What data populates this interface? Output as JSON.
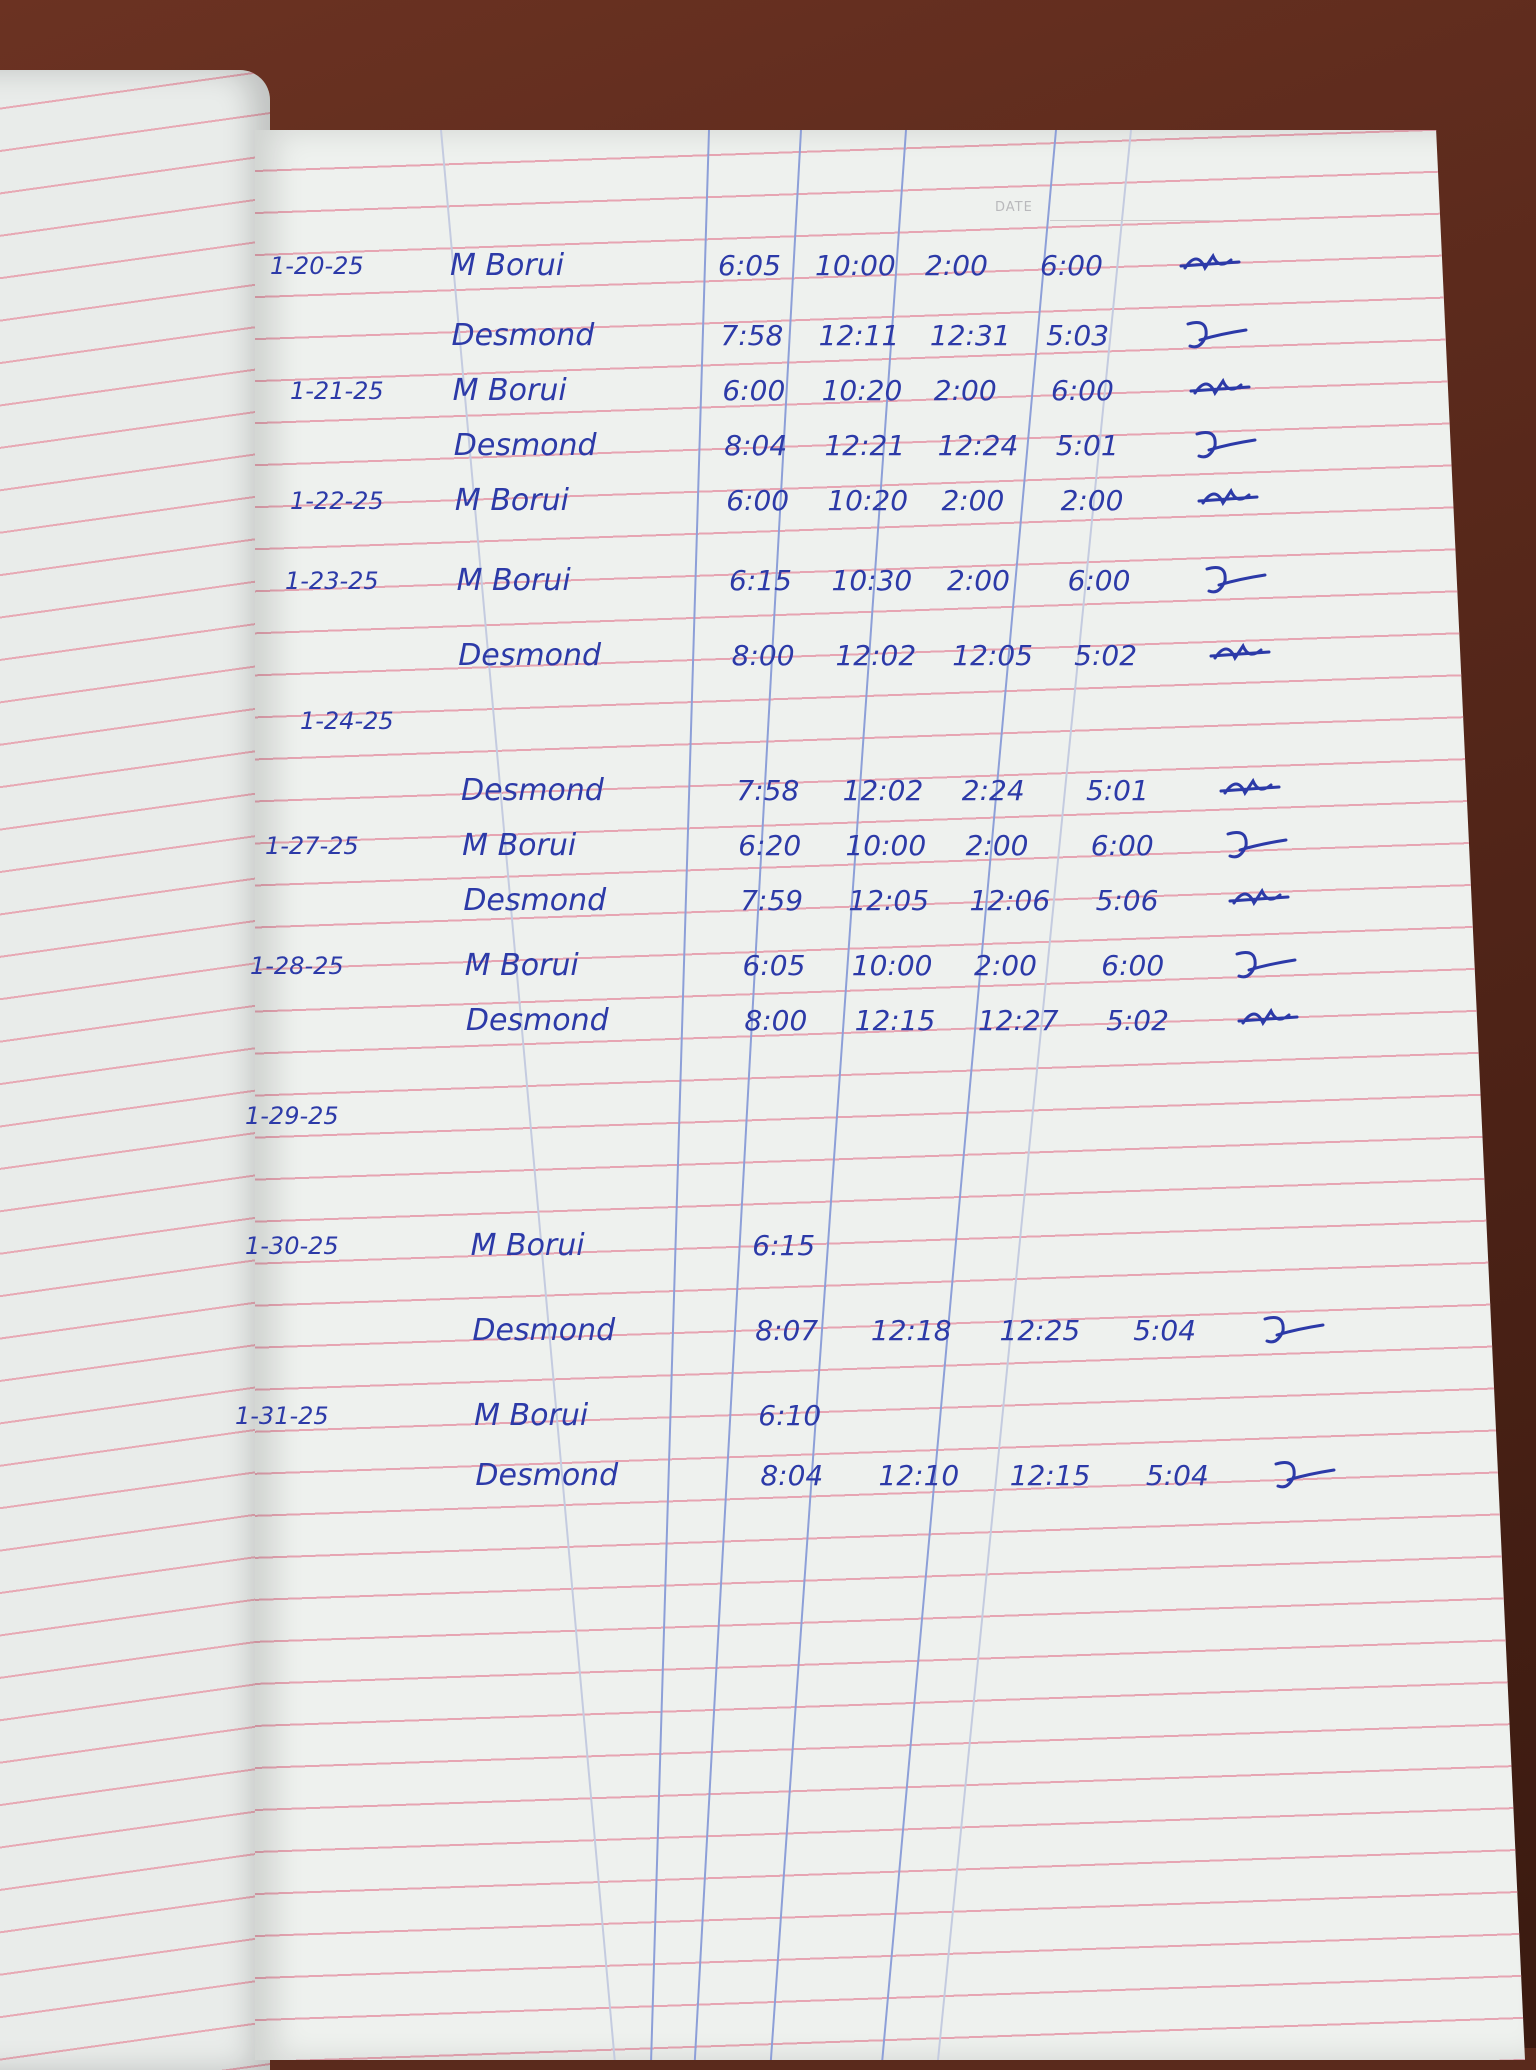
{
  "page_header": {
    "date_label": "DATE"
  },
  "ink_color": "#2c3aa8",
  "rows": [
    {
      "date": "1-20-25",
      "name": "M Borui",
      "times": [
        "6:05",
        "10:00",
        "2:00",
        "6:00"
      ],
      "signed": true
    },
    {
      "date": "",
      "name": "Desmond",
      "times": [
        "7:58",
        "12:11",
        "12:31",
        "5:03"
      ],
      "signed": true
    },
    {
      "date": "1-21-25",
      "name": "M Borui",
      "times": [
        "6:00",
        "10:20",
        "2:00",
        "6:00"
      ],
      "signed": true
    },
    {
      "date": "",
      "name": "Desmond",
      "times": [
        "8:04",
        "12:21",
        "12:24",
        "5:01"
      ],
      "signed": true
    },
    {
      "date": "1-22-25",
      "name": "M Borui",
      "times": [
        "6:00",
        "10:20",
        "2:00",
        "2:00"
      ],
      "signed": true
    },
    {
      "date": "1-23-25",
      "name": "M Borui",
      "times": [
        "6:15",
        "10:30",
        "2:00",
        "6:00"
      ],
      "signed": true
    },
    {
      "date": "",
      "name": "Desmond",
      "times": [
        "8:00",
        "12:02",
        "12:05",
        "5:02"
      ],
      "signed": true
    },
    {
      "date": "1-24-25",
      "name": "",
      "times": [],
      "signed": false
    },
    {
      "date": "",
      "name": "Desmond",
      "times": [
        "7:58",
        "12:02",
        "2:24",
        "5:01"
      ],
      "signed": true
    },
    {
      "date": "1-27-25",
      "name": "M Borui",
      "times": [
        "6:20",
        "10:00",
        "2:00",
        "6:00"
      ],
      "signed": true
    },
    {
      "date": "",
      "name": "Desmond",
      "times": [
        "7:59",
        "12:05",
        "12:06",
        "5:06"
      ],
      "signed": true
    },
    {
      "date": "1-28-25",
      "name": "M Borui",
      "times": [
        "6:05",
        "10:00",
        "2:00",
        "6:00"
      ],
      "signed": true
    },
    {
      "date": "",
      "name": "Desmond",
      "times": [
        "8:00",
        "12:15",
        "12:27",
        "5:02"
      ],
      "signed": true
    },
    {
      "date": "1-29-25",
      "name": "",
      "times": [],
      "signed": false
    },
    {
      "date": "1-30-25",
      "name": "M Borui",
      "times": [
        "6:15"
      ],
      "signed": false
    },
    {
      "date": "",
      "name": "Desmond",
      "times": [
        "8:07",
        "12:18",
        "12:25",
        "5:04"
      ],
      "signed": true
    },
    {
      "date": "1-31-25",
      "name": "M Borui",
      "times": [
        "6:10"
      ],
      "signed": false
    },
    {
      "date": "",
      "name": "Desmond",
      "times": [
        "8:04",
        "12:10",
        "12:15",
        "5:04"
      ],
      "signed": true
    }
  ]
}
